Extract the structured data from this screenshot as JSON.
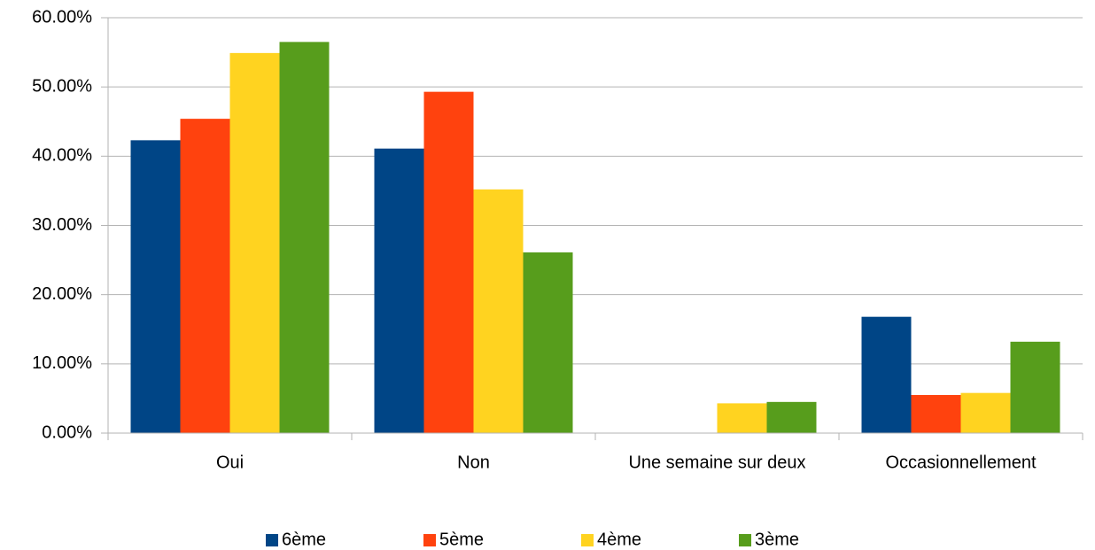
{
  "chart_data": {
    "type": "bar",
    "categories": [
      "Oui",
      "Non",
      "Une semaine sur deux",
      "Occasionnellement"
    ],
    "series": [
      {
        "name": "6ème",
        "color": "#004586",
        "values": [
          42.3,
          41.1,
          0,
          16.8
        ]
      },
      {
        "name": "5ème",
        "color": "#ff420e",
        "values": [
          45.4,
          49.3,
          0,
          5.5
        ]
      },
      {
        "name": "4ème",
        "color": "#ffd320",
        "values": [
          54.9,
          35.2,
          4.3,
          5.8
        ]
      },
      {
        "name": "3ème",
        "color": "#579d1c",
        "values": [
          56.5,
          26.1,
          4.5,
          13.2
        ]
      }
    ],
    "ylim": [
      0,
      60
    ],
    "yticks": [
      {
        "value": 0,
        "label": "0.00%"
      },
      {
        "value": 10,
        "label": "10.00%"
      },
      {
        "value": 20,
        "label": "20.00%"
      },
      {
        "value": 30,
        "label": "30.00%"
      },
      {
        "value": 40,
        "label": "40.00%"
      },
      {
        "value": 50,
        "label": "50.00%"
      },
      {
        "value": 60,
        "label": "60.00%"
      }
    ],
    "grid": true,
    "legend": "bottom"
  }
}
